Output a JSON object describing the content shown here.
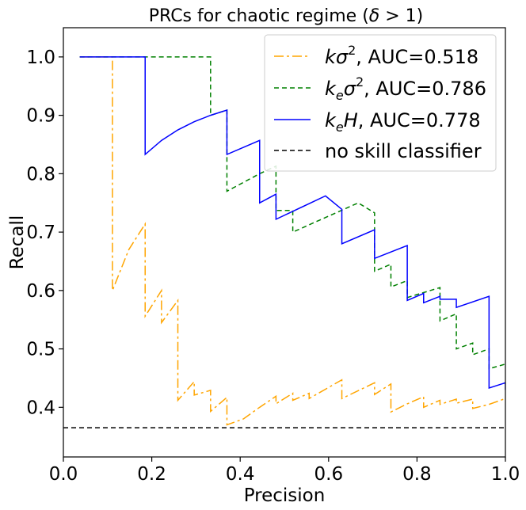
{
  "chart_data": {
    "type": "line",
    "title_text": "PRCs for chaotic regime (",
    "title_sym": "δ",
    "title_rest": " > 1)",
    "xlabel": "Precision",
    "ylabel": "Recall",
    "xlim": [
      0.0,
      1.0
    ],
    "ylim": [
      0.315,
      1.05
    ],
    "xticks": [
      0.0,
      0.2,
      0.4,
      0.6,
      0.8,
      1.0
    ],
    "xtick_labels": [
      "0.0",
      "0.2",
      "0.4",
      "0.6",
      "0.8",
      "1.0"
    ],
    "yticks": [
      0.4,
      0.5,
      0.6,
      0.7,
      0.8,
      0.9,
      1.0
    ],
    "ytick_labels": [
      "0.4",
      "0.5",
      "0.6",
      "0.7",
      "0.8",
      "0.9",
      "1.0"
    ],
    "grid": false,
    "legend_position": "top-right",
    "no_skill_level": 0.365,
    "series": [
      {
        "name_base": "kσ",
        "name_sup": "2",
        "name_auc": ", AUC=0.518",
        "color": "#ffa500",
        "dash": "12,4,3,4",
        "points": [
          [
            0.037,
            1.0
          ],
          [
            0.111,
            1.0
          ],
          [
            0.111,
            0.6
          ],
          [
            0.148,
            0.67
          ],
          [
            0.185,
            0.714
          ],
          [
            0.185,
            0.556
          ],
          [
            0.222,
            0.6
          ],
          [
            0.222,
            0.545
          ],
          [
            0.259,
            0.583
          ],
          [
            0.259,
            0.412
          ],
          [
            0.296,
            0.444
          ],
          [
            0.296,
            0.421
          ],
          [
            0.333,
            0.429
          ],
          [
            0.333,
            0.393
          ],
          [
            0.37,
            0.417
          ],
          [
            0.37,
            0.37
          ],
          [
            0.407,
            0.38
          ],
          [
            0.444,
            0.4
          ],
          [
            0.481,
            0.419
          ],
          [
            0.481,
            0.406
          ],
          [
            0.519,
            0.424
          ],
          [
            0.519,
            0.412
          ],
          [
            0.556,
            0.424
          ],
          [
            0.556,
            0.415
          ],
          [
            0.63,
            0.447
          ],
          [
            0.63,
            0.415
          ],
          [
            0.704,
            0.442
          ],
          [
            0.704,
            0.422
          ],
          [
            0.741,
            0.44
          ],
          [
            0.741,
            0.392
          ],
          [
            0.778,
            0.406
          ],
          [
            0.815,
            0.418
          ],
          [
            0.815,
            0.4
          ],
          [
            0.852,
            0.412
          ],
          [
            0.852,
            0.405
          ],
          [
            0.889,
            0.414
          ],
          [
            0.889,
            0.407
          ],
          [
            0.926,
            0.414
          ],
          [
            0.926,
            0.398
          ],
          [
            0.963,
            0.405
          ],
          [
            1.0,
            0.415
          ]
        ]
      },
      {
        "name_base": "k",
        "name_sub": "e",
        "name_base2": "σ",
        "name_sup": "2",
        "name_auc": ", AUC=0.786",
        "color": "#008000",
        "dash": "6,4",
        "points": [
          [
            0.037,
            1.0
          ],
          [
            0.333,
            1.0
          ],
          [
            0.333,
            0.9
          ],
          [
            0.37,
            0.909
          ],
          [
            0.37,
            0.77
          ],
          [
            0.444,
            0.8
          ],
          [
            0.481,
            0.813
          ],
          [
            0.481,
            0.737
          ],
          [
            0.519,
            0.737
          ],
          [
            0.519,
            0.7
          ],
          [
            0.667,
            0.75
          ],
          [
            0.704,
            0.733
          ],
          [
            0.704,
            0.633
          ],
          [
            0.741,
            0.645
          ],
          [
            0.741,
            0.606
          ],
          [
            0.778,
            0.617
          ],
          [
            0.778,
            0.588
          ],
          [
            0.852,
            0.605
          ],
          [
            0.852,
            0.548
          ],
          [
            0.889,
            0.56
          ],
          [
            0.889,
            0.5
          ],
          [
            0.926,
            0.51
          ],
          [
            0.926,
            0.49
          ],
          [
            0.963,
            0.5
          ],
          [
            0.963,
            0.466
          ],
          [
            1.0,
            0.474
          ]
        ]
      },
      {
        "name_base": "k",
        "name_sub": "e",
        "name_base2": "H",
        "name_auc": ", AUC=0.778",
        "color": "#0000ff",
        "dash": "",
        "points": [
          [
            0.037,
            1.0
          ],
          [
            0.185,
            1.0
          ],
          [
            0.185,
            0.833
          ],
          [
            0.222,
            0.857
          ],
          [
            0.259,
            0.875
          ],
          [
            0.296,
            0.889
          ],
          [
            0.333,
            0.9
          ],
          [
            0.37,
            0.909
          ],
          [
            0.37,
            0.833
          ],
          [
            0.444,
            0.857
          ],
          [
            0.444,
            0.75
          ],
          [
            0.481,
            0.765
          ],
          [
            0.481,
            0.722
          ],
          [
            0.593,
            0.762
          ],
          [
            0.63,
            0.739
          ],
          [
            0.63,
            0.68
          ],
          [
            0.704,
            0.704
          ],
          [
            0.704,
            0.655
          ],
          [
            0.778,
            0.677
          ],
          [
            0.778,
            0.583
          ],
          [
            0.815,
            0.595
          ],
          [
            0.815,
            0.579
          ],
          [
            0.852,
            0.59
          ],
          [
            0.852,
            0.585
          ],
          [
            0.889,
            0.585
          ],
          [
            0.889,
            0.571
          ],
          [
            0.963,
            0.59
          ],
          [
            0.963,
            0.433
          ],
          [
            1.0,
            0.442
          ],
          [
            1.0,
            0.43
          ]
        ]
      },
      {
        "name_plain": "no skill classifier",
        "color": "#000000",
        "dash": "6,4",
        "points": [
          [
            0.0,
            0.365
          ],
          [
            1.0,
            0.365
          ]
        ]
      }
    ]
  }
}
